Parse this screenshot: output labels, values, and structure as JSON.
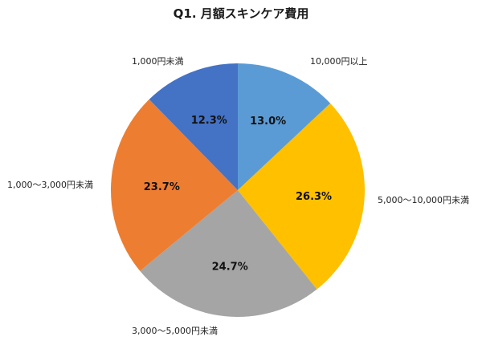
{
  "title": "Q1. 月額スキンケア費用",
  "chart_data": {
    "type": "pie",
    "title": "Q1. 月額スキンケア費用",
    "start_angle": "12 o'clock, clockwise",
    "categories": [
      "10,000円以上",
      "5,000〜10,000円未満",
      "3,000〜5,000円未満",
      "1,000〜3,000円未満",
      "1,000円未満"
    ],
    "values": [
      13.0,
      26.3,
      24.7,
      23.7,
      12.3
    ],
    "value_labels": [
      "13.0%",
      "26.3%",
      "24.7%",
      "23.7%",
      "12.3%"
    ],
    "colors": [
      "#5B9BD5",
      "#FFC000",
      "#A5A5A5",
      "#ED7D31",
      "#4472C4"
    ],
    "legend": "none (labels placed outside slices)",
    "unit": "%"
  }
}
